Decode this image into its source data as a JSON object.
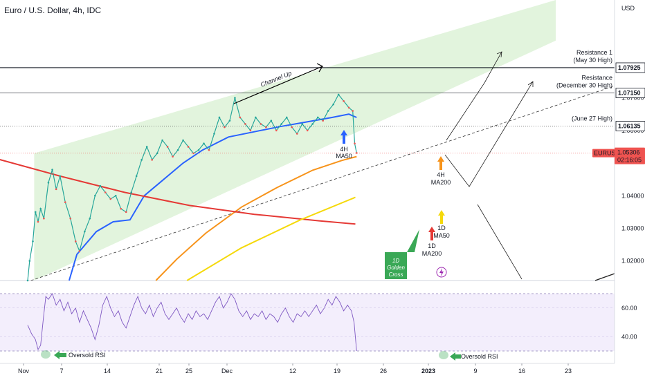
{
  "header": {
    "title": "Euro / U.S. Dollar, 4h, IDC"
  },
  "chart_data": {
    "type": "line",
    "title": "Euro / U.S. Dollar, 4h, IDC",
    "currency": "USD",
    "symbol": "EURUSD",
    "x_ticks": [
      "Nov",
      "7",
      "14",
      "21",
      "25",
      "Dec",
      "12",
      "19",
      "26",
      "2023",
      "9",
      "16",
      "23"
    ],
    "price_ticks": [
      1.02,
      1.03,
      1.04,
      1.06,
      1.07
    ],
    "price_tick_labels": [
      "1.02000",
      "1.03000",
      "1.04000",
      "1.06000",
      "1.07000"
    ],
    "rsi_ticks": [
      40.0,
      60.0
    ],
    "rsi_tick_labels": [
      "40.00",
      "60.00"
    ],
    "ylim": [
      1.014,
      1.1
    ],
    "rsi_ylim": [
      28,
      76
    ],
    "rsi_bands": [
      30,
      70
    ],
    "price_series": [
      {
        "d": 0,
        "v": 1.014
      },
      {
        "d": 0.3,
        "v": 1.02
      },
      {
        "d": 0.8,
        "v": 1.026
      },
      {
        "d": 1.2,
        "v": 1.035
      },
      {
        "d": 1.6,
        "v": 1.032
      },
      {
        "d": 2.0,
        "v": 1.036
      },
      {
        "d": 2.5,
        "v": 1.033
      },
      {
        "d": 3.2,
        "v": 1.044
      },
      {
        "d": 3.8,
        "v": 1.048
      },
      {
        "d": 4.4,
        "v": 1.042
      },
      {
        "d": 5.0,
        "v": 1.046
      },
      {
        "d": 5.8,
        "v": 1.038
      },
      {
        "d": 6.6,
        "v": 1.033
      },
      {
        "d": 7.4,
        "v": 1.026
      },
      {
        "d": 8.0,
        "v": 1.023
      },
      {
        "d": 8.8,
        "v": 1.029
      },
      {
        "d": 9.6,
        "v": 1.033
      },
      {
        "d": 10.4,
        "v": 1.04
      },
      {
        "d": 11.2,
        "v": 1.043
      },
      {
        "d": 12.0,
        "v": 1.041
      },
      {
        "d": 12.8,
        "v": 1.039
      },
      {
        "d": 13.6,
        "v": 1.04
      },
      {
        "d": 14.4,
        "v": 1.036
      },
      {
        "d": 15.2,
        "v": 1.035
      },
      {
        "d": 16.0,
        "v": 1.041
      },
      {
        "d": 16.8,
        "v": 1.046
      },
      {
        "d": 17.6,
        "v": 1.051
      },
      {
        "d": 18.4,
        "v": 1.055
      },
      {
        "d": 19.2,
        "v": 1.051
      },
      {
        "d": 20.0,
        "v": 1.053
      },
      {
        "d": 20.8,
        "v": 1.057
      },
      {
        "d": 21.6,
        "v": 1.055
      },
      {
        "d": 22.4,
        "v": 1.052
      },
      {
        "d": 23.2,
        "v": 1.054
      },
      {
        "d": 24.0,
        "v": 1.057
      },
      {
        "d": 24.8,
        "v": 1.055
      },
      {
        "d": 25.6,
        "v": 1.053
      },
      {
        "d": 26.4,
        "v": 1.054
      },
      {
        "d": 27.2,
        "v": 1.056
      },
      {
        "d": 28.0,
        "v": 1.054
      },
      {
        "d": 28.8,
        "v": 1.059
      },
      {
        "d": 29.6,
        "v": 1.064
      },
      {
        "d": 30.4,
        "v": 1.061
      },
      {
        "d": 31.2,
        "v": 1.063
      },
      {
        "d": 32.0,
        "v": 1.07
      },
      {
        "d": 32.8,
        "v": 1.064
      },
      {
        "d": 33.6,
        "v": 1.062
      },
      {
        "d": 34.4,
        "v": 1.06
      },
      {
        "d": 35.2,
        "v": 1.064
      },
      {
        "d": 36.0,
        "v": 1.062
      },
      {
        "d": 36.8,
        "v": 1.061
      },
      {
        "d": 37.6,
        "v": 1.063
      },
      {
        "d": 38.4,
        "v": 1.06
      },
      {
        "d": 39.2,
        "v": 1.062
      },
      {
        "d": 40.0,
        "v": 1.064
      },
      {
        "d": 40.8,
        "v": 1.061
      },
      {
        "d": 41.6,
        "v": 1.059
      },
      {
        "d": 42.4,
        "v": 1.062
      },
      {
        "d": 43.2,
        "v": 1.06
      },
      {
        "d": 44.0,
        "v": 1.062
      },
      {
        "d": 44.8,
        "v": 1.064
      },
      {
        "d": 45.6,
        "v": 1.063
      },
      {
        "d": 46.4,
        "v": 1.066
      },
      {
        "d": 47.2,
        "v": 1.068
      },
      {
        "d": 48.0,
        "v": 1.071
      },
      {
        "d": 48.8,
        "v": 1.069
      },
      {
        "d": 49.6,
        "v": 1.067
      },
      {
        "d": 50.2,
        "v": 1.066
      },
      {
        "d": 50.5,
        "v": 1.056
      },
      {
        "d": 50.8,
        "v": 1.0531
      }
    ],
    "rsi_series": [
      {
        "d": 0,
        "v": 48
      },
      {
        "d": 0.6,
        "v": 42
      },
      {
        "d": 1.2,
        "v": 38
      },
      {
        "d": 1.6,
        "v": 31
      },
      {
        "d": 2.0,
        "v": 34
      },
      {
        "d": 2.4,
        "v": 52
      },
      {
        "d": 2.8,
        "v": 68
      },
      {
        "d": 3.2,
        "v": 66
      },
      {
        "d": 3.8,
        "v": 70
      },
      {
        "d": 4.4,
        "v": 62
      },
      {
        "d": 5.0,
        "v": 66
      },
      {
        "d": 5.6,
        "v": 58
      },
      {
        "d": 6.2,
        "v": 64
      },
      {
        "d": 6.8,
        "v": 56
      },
      {
        "d": 7.4,
        "v": 60
      },
      {
        "d": 8.0,
        "v": 50
      },
      {
        "d": 8.6,
        "v": 58
      },
      {
        "d": 9.2,
        "v": 52
      },
      {
        "d": 9.8,
        "v": 46
      },
      {
        "d": 10.4,
        "v": 38
      },
      {
        "d": 11.0,
        "v": 48
      },
      {
        "d": 11.6,
        "v": 62
      },
      {
        "d": 12.2,
        "v": 68
      },
      {
        "d": 12.8,
        "v": 60
      },
      {
        "d": 13.4,
        "v": 54
      },
      {
        "d": 14.0,
        "v": 58
      },
      {
        "d": 14.6,
        "v": 50
      },
      {
        "d": 15.2,
        "v": 46
      },
      {
        "d": 15.8,
        "v": 54
      },
      {
        "d": 16.4,
        "v": 62
      },
      {
        "d": 17.0,
        "v": 68
      },
      {
        "d": 17.6,
        "v": 60
      },
      {
        "d": 18.2,
        "v": 56
      },
      {
        "d": 18.8,
        "v": 62
      },
      {
        "d": 19.4,
        "v": 54
      },
      {
        "d": 20.0,
        "v": 60
      },
      {
        "d": 20.6,
        "v": 64
      },
      {
        "d": 21.2,
        "v": 56
      },
      {
        "d": 21.8,
        "v": 52
      },
      {
        "d": 22.4,
        "v": 56
      },
      {
        "d": 23.0,
        "v": 60
      },
      {
        "d": 23.6,
        "v": 54
      },
      {
        "d": 24.2,
        "v": 50
      },
      {
        "d": 24.8,
        "v": 56
      },
      {
        "d": 25.4,
        "v": 52
      },
      {
        "d": 26.0,
        "v": 58
      },
      {
        "d": 26.6,
        "v": 54
      },
      {
        "d": 27.2,
        "v": 56
      },
      {
        "d": 27.8,
        "v": 52
      },
      {
        "d": 28.4,
        "v": 58
      },
      {
        "d": 29.0,
        "v": 64
      },
      {
        "d": 29.6,
        "v": 68
      },
      {
        "d": 30.2,
        "v": 60
      },
      {
        "d": 30.8,
        "v": 64
      },
      {
        "d": 31.4,
        "v": 70
      },
      {
        "d": 32.0,
        "v": 66
      },
      {
        "d": 32.6,
        "v": 58
      },
      {
        "d": 33.2,
        "v": 54
      },
      {
        "d": 33.8,
        "v": 58
      },
      {
        "d": 34.4,
        "v": 52
      },
      {
        "d": 35.0,
        "v": 56
      },
      {
        "d": 35.6,
        "v": 54
      },
      {
        "d": 36.2,
        "v": 58
      },
      {
        "d": 36.8,
        "v": 52
      },
      {
        "d": 37.4,
        "v": 56
      },
      {
        "d": 38.0,
        "v": 54
      },
      {
        "d": 38.6,
        "v": 50
      },
      {
        "d": 39.2,
        "v": 56
      },
      {
        "d": 39.8,
        "v": 60
      },
      {
        "d": 40.4,
        "v": 54
      },
      {
        "d": 41.0,
        "v": 50
      },
      {
        "d": 41.6,
        "v": 56
      },
      {
        "d": 42.2,
        "v": 54
      },
      {
        "d": 42.8,
        "v": 58
      },
      {
        "d": 43.4,
        "v": 54
      },
      {
        "d": 44.0,
        "v": 58
      },
      {
        "d": 44.6,
        "v": 62
      },
      {
        "d": 45.2,
        "v": 56
      },
      {
        "d": 45.8,
        "v": 60
      },
      {
        "d": 46.4,
        "v": 66
      },
      {
        "d": 47.0,
        "v": 62
      },
      {
        "d": 47.6,
        "v": 68
      },
      {
        "d": 48.2,
        "v": 64
      },
      {
        "d": 48.8,
        "v": 58
      },
      {
        "d": 49.4,
        "v": 62
      },
      {
        "d": 50.0,
        "v": 58
      },
      {
        "d": 50.4,
        "v": 50
      },
      {
        "d": 50.8,
        "v": 30
      }
    ],
    "ma_lines": [
      {
        "name": "4H MA50",
        "color": "#2962ff",
        "points": [
          {
            "d": 6.4,
            "v": 1.014
          },
          {
            "d": 7.6,
            "v": 1.022
          },
          {
            "d": 10.6,
            "v": 1.029
          },
          {
            "d": 13.2,
            "v": 1.032
          },
          {
            "d": 15.8,
            "v": 1.0326
          },
          {
            "d": 18.0,
            "v": 1.04
          },
          {
            "d": 21.0,
            "v": 1.045
          },
          {
            "d": 24.0,
            "v": 1.05
          },
          {
            "d": 27.0,
            "v": 1.054
          },
          {
            "d": 31.0,
            "v": 1.058
          },
          {
            "d": 35.0,
            "v": 1.0596
          },
          {
            "d": 39.0,
            "v": 1.0612
          },
          {
            "d": 43.0,
            "v": 1.0626
          },
          {
            "d": 47.0,
            "v": 1.064
          },
          {
            "d": 49.6,
            "v": 1.065
          },
          {
            "d": 50.8,
            "v": 1.064
          }
        ]
      },
      {
        "name": "4H MA200",
        "color": "#f7931a",
        "points": [
          {
            "d": 19.8,
            "v": 1.014
          },
          {
            "d": 23.0,
            "v": 1.0205
          },
          {
            "d": 27.5,
            "v": 1.0285
          },
          {
            "d": 33.0,
            "v": 1.0365
          },
          {
            "d": 38.5,
            "v": 1.0425
          },
          {
            "d": 44.0,
            "v": 1.0478
          },
          {
            "d": 48.5,
            "v": 1.0508
          },
          {
            "d": 50.8,
            "v": 1.052
          }
        ]
      },
      {
        "name": "1D MA200",
        "color": "#e53935",
        "points": [
          {
            "d": -6.0,
            "v": 1.052
          },
          {
            "d": 5.0,
            "v": 1.046
          },
          {
            "d": 15.0,
            "v": 1.041
          },
          {
            "d": 25.0,
            "v": 1.037
          },
          {
            "d": 35.0,
            "v": 1.0343
          },
          {
            "d": 45.0,
            "v": 1.0323
          },
          {
            "d": 50.6,
            "v": 1.0313
          }
        ]
      },
      {
        "name": "1D MA50",
        "color": "#f5d90a",
        "points": [
          {
            "d": 24.6,
            "v": 1.014
          },
          {
            "d": 33.0,
            "v": 1.024
          },
          {
            "d": 42.0,
            "v": 1.0325
          },
          {
            "d": 50.6,
            "v": 1.0395
          }
        ]
      }
    ],
    "channel": {
      "label": "Channel Up",
      "lower": [
        {
          "d": 1.0,
          "v": 1.014
        },
        {
          "d": 70.0,
          "v": 1.077
        }
      ],
      "upper": [
        {
          "d": 1.0,
          "v": 1.053
        },
        {
          "d": 61.0,
          "v": 1.1
        }
      ],
      "right_edge": [
        {
          "d": 61.0,
          "v": 1.1
        },
        {
          "d": 70.0,
          "v": 1.077
        }
      ]
    },
    "dashed_support": [
      {
        "d": 0.5,
        "v": 1.014
      },
      {
        "d": 70.0,
        "v": 1.06
      }
    ],
    "levels": [
      {
        "price": 1.07925,
        "label": "1.07925",
        "title": "Resistance 1",
        "subtitle": "(May 30 High)",
        "style": "solid"
      },
      {
        "price": 1.0715,
        "label": "1.07150",
        "title": "Resistance",
        "subtitle": "(December 30 High)",
        "style": "solid"
      },
      {
        "price": 1.06135,
        "label": "1.06135",
        "title": "(June 27 High)",
        "subtitle": "",
        "style": "dotted"
      }
    ],
    "current_price": {
      "price": 1.05306,
      "symbol": "EURUSD",
      "label": "1.05306",
      "countdown": "02:16:05"
    },
    "annotations": [
      {
        "id": "ma50-4h",
        "lines": [
          "4H",
          "MA50"
        ],
        "color": "#2962ff"
      },
      {
        "id": "ma200-4h",
        "lines": [
          "4H",
          "MA200"
        ],
        "color": "#f7931a"
      },
      {
        "id": "ma50-1d",
        "lines": [
          "1D",
          "MA50"
        ],
        "color": "#f5d90a"
      },
      {
        "id": "ma200-1d",
        "lines": [
          "1D",
          "MA200"
        ],
        "color": "#e53935"
      },
      {
        "id": "golden-cross",
        "lines": [
          "1D",
          "Golden",
          "Cross"
        ],
        "color": "#3aa856"
      },
      {
        "id": "oversold-1",
        "text": "Oversold RSI",
        "color": "#3aa856"
      },
      {
        "id": "oversold-2",
        "text": "Oversold RSI",
        "color": "#3aa856"
      }
    ],
    "grid": false,
    "legend": "none"
  }
}
